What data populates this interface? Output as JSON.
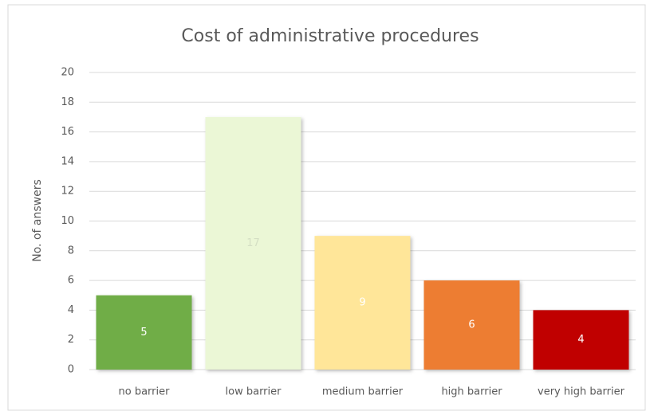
{
  "chart_data": {
    "type": "bar",
    "title": "Cost of administrative procedures",
    "y_label": "No. of answers",
    "categories": [
      "no barrier",
      "low barrier",
      "medium barrier",
      "high barrier",
      "very high barrier"
    ],
    "values": [
      5,
      17,
      9,
      6,
      4
    ],
    "colors": [
      "#70ad47",
      "#ebf7d6",
      "#ffe699",
      "#ed7d31",
      "#c00000"
    ],
    "label_colors": [
      "#ffffff",
      "#d4dfc4",
      "#ffffff",
      "#ffffff",
      "#ffffff"
    ],
    "ylim": [
      0,
      20
    ],
    "yticks": [
      0,
      2,
      4,
      6,
      8,
      10,
      12,
      14,
      16,
      18,
      20
    ],
    "grid": true
  }
}
